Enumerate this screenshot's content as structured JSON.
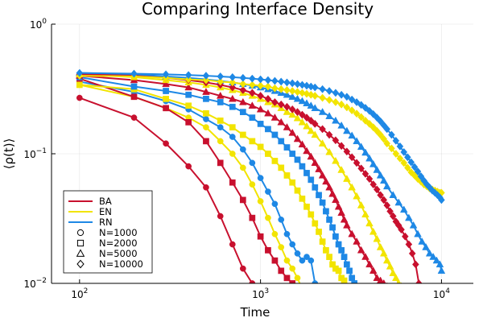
{
  "chart_data": {
    "type": "line",
    "title": "Comparing Interface Density",
    "xlabel": "Time",
    "ylabel": "⟨ρ(t)⟩",
    "xscale": "log",
    "yscale": "log",
    "xlim": [
      70,
      15000
    ],
    "ylim": [
      0.01,
      1
    ],
    "x_ticks": [
      {
        "value": 100,
        "base": "10",
        "exp": "2"
      },
      {
        "value": 1000,
        "base": "10",
        "exp": "3"
      },
      {
        "value": 10000,
        "base": "10",
        "exp": "4"
      }
    ],
    "y_ticks": [
      {
        "value": 0.01,
        "base": "10",
        "exp": "−2"
      },
      {
        "value": 0.1,
        "base": "10",
        "exp": "−1"
      },
      {
        "value": 1,
        "base": "10",
        "exp": "0"
      }
    ],
    "grid": true,
    "legend_position": "bottom-left",
    "legend_colors": [
      {
        "name": "BA",
        "color": "#c8102e"
      },
      {
        "name": "EN",
        "color": "#f2e400"
      },
      {
        "name": "RN",
        "color": "#1e88e5"
      }
    ],
    "legend_markers": [
      {
        "name": "N=1000",
        "marker": "circle"
      },
      {
        "name": "N=2000",
        "marker": "square"
      },
      {
        "name": "N=5000",
        "marker": "triangle"
      },
      {
        "name": "N=10000",
        "marker": "diamond"
      }
    ],
    "series": [
      {
        "network": "BA",
        "size": "N=1000",
        "color": "#c8102e",
        "marker": "circle",
        "x": [
          100,
          200,
          300,
          400,
          500,
          600,
          700,
          800,
          900,
          1000
        ],
        "y": [
          0.27,
          0.19,
          0.12,
          0.08,
          0.055,
          0.033,
          0.02,
          0.013,
          0.01,
          0.0085
        ]
      },
      {
        "network": "EN",
        "size": "N=1000",
        "color": "#f2e400",
        "marker": "circle",
        "x": [
          100,
          200,
          300,
          400,
          500,
          600,
          700,
          800,
          900,
          1000,
          1100,
          1200,
          1300,
          1400,
          1500,
          1600,
          1700
        ],
        "y": [
          0.34,
          0.275,
          0.225,
          0.19,
          0.16,
          0.125,
          0.1,
          0.078,
          0.058,
          0.043,
          0.032,
          0.024,
          0.019,
          0.015,
          0.013,
          0.011,
          0.009
        ]
      },
      {
        "network": "RN",
        "size": "N=1000",
        "color": "#1e88e5",
        "marker": "circle",
        "x": [
          100,
          200,
          300,
          400,
          500,
          600,
          700,
          800,
          900,
          1000,
          1100,
          1200,
          1300,
          1400,
          1500,
          1600,
          1700,
          1800,
          1900,
          2000
        ],
        "y": [
          0.36,
          0.3,
          0.255,
          0.22,
          0.185,
          0.16,
          0.135,
          0.108,
          0.085,
          0.065,
          0.051,
          0.041,
          0.031,
          0.024,
          0.02,
          0.017,
          0.015,
          0.016,
          0.015,
          0.01
        ]
      },
      {
        "network": "BA",
        "size": "N=2000",
        "color": "#c8102e",
        "marker": "square",
        "x": [
          100,
          200,
          300,
          400,
          500,
          600,
          700,
          800,
          900,
          1000,
          1100,
          1200,
          1300,
          1400,
          1500,
          1550
        ],
        "y": [
          0.38,
          0.275,
          0.225,
          0.175,
          0.125,
          0.085,
          0.06,
          0.044,
          0.032,
          0.023,
          0.018,
          0.015,
          0.0125,
          0.011,
          0.01,
          0.0095
        ]
      },
      {
        "network": "EN",
        "size": "N=2000",
        "color": "#f2e400",
        "marker": "square",
        "x": [
          100,
          200,
          300,
          400,
          500,
          600,
          700,
          800,
          900,
          1000,
          1100,
          1200,
          1300,
          1400,
          1500,
          1600,
          1700,
          1800,
          1900,
          2000,
          2100,
          2200,
          2300,
          2400,
          2500,
          2600,
          2700,
          2800,
          2900,
          3000,
          3100
        ],
        "y": [
          0.34,
          0.315,
          0.265,
          0.235,
          0.205,
          0.18,
          0.16,
          0.14,
          0.125,
          0.113,
          0.1,
          0.088,
          0.078,
          0.068,
          0.06,
          0.052,
          0.045,
          0.039,
          0.034,
          0.029,
          0.025,
          0.021,
          0.018,
          0.016,
          0.014,
          0.013,
          0.0125,
          0.011,
          0.0105,
          0.0095,
          0.009
        ]
      },
      {
        "network": "RN",
        "size": "N=2000",
        "color": "#1e88e5",
        "marker": "square",
        "x": [
          100,
          200,
          300,
          400,
          500,
          600,
          700,
          800,
          900,
          1000,
          1100,
          1200,
          1300,
          1400,
          1500,
          1600,
          1700,
          1800,
          1900,
          2000,
          2100,
          2200,
          2300,
          2400,
          2500,
          2600,
          2700,
          2800,
          2900,
          3000,
          3100,
          3200,
          3300
        ],
        "y": [
          0.39,
          0.33,
          0.305,
          0.285,
          0.265,
          0.25,
          0.23,
          0.21,
          0.19,
          0.17,
          0.155,
          0.14,
          0.125,
          0.112,
          0.1,
          0.09,
          0.08,
          0.071,
          0.063,
          0.055,
          0.048,
          0.042,
          0.036,
          0.031,
          0.027,
          0.023,
          0.02,
          0.018,
          0.016,
          0.014,
          0.0125,
          0.011,
          0.01
        ]
      },
      {
        "network": "BA",
        "size": "N=5000",
        "color": "#c8102e",
        "marker": "triangle",
        "x": [
          100,
          200,
          300,
          400,
          500,
          600,
          700,
          800,
          900,
          1000,
          1100,
          1200,
          1300,
          1400,
          1500,
          1600,
          1700,
          1800,
          1900,
          2000,
          2100,
          2200,
          2300,
          2400,
          2500,
          2600,
          2700,
          2800,
          2900,
          3000,
          3200,
          3400,
          3600,
          3800,
          4000,
          4200,
          4400,
          4600,
          4800,
          5000,
          5200
        ],
        "y": [
          0.4,
          0.37,
          0.345,
          0.325,
          0.3,
          0.28,
          0.265,
          0.25,
          0.235,
          0.22,
          0.205,
          0.19,
          0.175,
          0.16,
          0.145,
          0.13,
          0.118,
          0.105,
          0.095,
          0.085,
          0.076,
          0.068,
          0.061,
          0.055,
          0.049,
          0.044,
          0.039,
          0.035,
          0.031,
          0.028,
          0.024,
          0.021,
          0.018,
          0.016,
          0.014,
          0.0125,
          0.011,
          0.0105,
          0.01,
          0.0095,
          0.009
        ]
      },
      {
        "network": "EN",
        "size": "N=5000",
        "color": "#f2e400",
        "marker": "triangle",
        "x": [
          100,
          200,
          300,
          400,
          500,
          600,
          700,
          800,
          900,
          1000,
          1100,
          1200,
          1300,
          1400,
          1500,
          1600,
          1700,
          1800,
          1900,
          2000,
          2200,
          2400,
          2600,
          2800,
          3000,
          3200,
          3400,
          3600,
          3800,
          4000,
          4200,
          4400,
          4600,
          4800,
          5000,
          5200,
          5400,
          5600,
          5800,
          6000
        ],
        "y": [
          0.41,
          0.39,
          0.37,
          0.355,
          0.34,
          0.325,
          0.31,
          0.295,
          0.28,
          0.265,
          0.25,
          0.24,
          0.225,
          0.21,
          0.2,
          0.188,
          0.175,
          0.163,
          0.15,
          0.14,
          0.12,
          0.103,
          0.088,
          0.075,
          0.064,
          0.055,
          0.047,
          0.04,
          0.034,
          0.029,
          0.025,
          0.022,
          0.019,
          0.017,
          0.015,
          0.0135,
          0.012,
          0.011,
          0.01,
          0.0095
        ]
      },
      {
        "network": "RN",
        "size": "N=5000",
        "color": "#1e88e5",
        "marker": "triangle",
        "x": [
          100,
          200,
          300,
          400,
          500,
          600,
          700,
          800,
          900,
          1000,
          1100,
          1200,
          1300,
          1400,
          1500,
          1600,
          1700,
          1800,
          1900,
          2000,
          2200,
          2400,
          2600,
          2800,
          3000,
          3200,
          3400,
          3600,
          3800,
          4000,
          4200,
          4400,
          4600,
          4800,
          5000,
          5400,
          5800,
          6200,
          6600,
          7000,
          7400,
          7800,
          8200,
          8600,
          9000,
          9400,
          9800,
          10000
        ],
        "y": [
          0.42,
          0.41,
          0.395,
          0.385,
          0.375,
          0.365,
          0.355,
          0.345,
          0.335,
          0.325,
          0.315,
          0.305,
          0.295,
          0.285,
          0.275,
          0.265,
          0.255,
          0.245,
          0.235,
          0.225,
          0.21,
          0.195,
          0.18,
          0.165,
          0.15,
          0.138,
          0.125,
          0.113,
          0.102,
          0.092,
          0.083,
          0.075,
          0.068,
          0.062,
          0.056,
          0.048,
          0.042,
          0.037,
          0.032,
          0.028,
          0.024,
          0.021,
          0.019,
          0.017,
          0.016,
          0.015,
          0.014,
          0.0125
        ]
      },
      {
        "network": "BA",
        "size": "N=10000",
        "color": "#c8102e",
        "marker": "diamond",
        "x": [
          100,
          200,
          300,
          400,
          500,
          600,
          700,
          800,
          900,
          1000,
          1100,
          1200,
          1300,
          1400,
          1500,
          1600,
          1700,
          1800,
          1900,
          2000,
          2200,
          2400,
          2600,
          2800,
          3000,
          3200,
          3400,
          3600,
          3800,
          4000,
          4200,
          4400,
          4600,
          4800,
          5000,
          5200,
          5400,
          5600,
          5800,
          6000,
          6300,
          6600,
          6900,
          7200,
          7500
        ],
        "y": [
          0.41,
          0.4,
          0.385,
          0.37,
          0.355,
          0.34,
          0.325,
          0.31,
          0.295,
          0.28,
          0.265,
          0.25,
          0.24,
          0.23,
          0.22,
          0.21,
          0.2,
          0.19,
          0.18,
          0.17,
          0.155,
          0.14,
          0.127,
          0.115,
          0.104,
          0.094,
          0.085,
          0.077,
          0.07,
          0.064,
          0.058,
          0.053,
          0.048,
          0.044,
          0.04,
          0.036,
          0.033,
          0.03,
          0.028,
          0.026,
          0.023,
          0.02,
          0.017,
          0.014,
          0.01
        ]
      },
      {
        "network": "EN",
        "size": "N=10000",
        "color": "#f2e400",
        "marker": "diamond",
        "x": [
          100,
          200,
          300,
          400,
          500,
          600,
          700,
          800,
          900,
          1000,
          1100,
          1200,
          1300,
          1400,
          1500,
          1600,
          1700,
          1800,
          1900,
          2000,
          2200,
          2400,
          2600,
          2800,
          3000,
          3200,
          3400,
          3600,
          3800,
          4000,
          4200,
          4400,
          4600,
          4800,
          5000,
          5300,
          5600,
          5900,
          6200,
          6500,
          6800,
          7100,
          7400,
          7700,
          8000,
          8300,
          8600,
          8900,
          9200,
          9500,
          9800,
          10000
        ],
        "y": [
          0.4,
          0.395,
          0.385,
          0.375,
          0.37,
          0.36,
          0.355,
          0.345,
          0.34,
          0.335,
          0.33,
          0.32,
          0.315,
          0.31,
          0.305,
          0.3,
          0.295,
          0.29,
          0.285,
          0.28,
          0.27,
          0.26,
          0.25,
          0.24,
          0.228,
          0.216,
          0.204,
          0.192,
          0.18,
          0.17,
          0.16,
          0.15,
          0.14,
          0.13,
          0.12,
          0.11,
          0.1,
          0.092,
          0.085,
          0.078,
          0.072,
          0.068,
          0.064,
          0.061,
          0.058,
          0.056,
          0.054,
          0.053,
          0.052,
          0.051,
          0.05,
          0.05
        ]
      },
      {
        "network": "RN",
        "size": "N=10000",
        "color": "#1e88e5",
        "marker": "diamond",
        "x": [
          100,
          200,
          300,
          400,
          500,
          600,
          700,
          800,
          900,
          1000,
          1100,
          1200,
          1300,
          1400,
          1500,
          1600,
          1700,
          1800,
          1900,
          2000,
          2200,
          2400,
          2600,
          2800,
          3000,
          3200,
          3400,
          3600,
          3800,
          4000,
          4200,
          4400,
          4600,
          4800,
          5000,
          5300,
          5600,
          5900,
          6200,
          6500,
          6800,
          7100,
          7400,
          7700,
          8000,
          8300,
          8600,
          8900,
          9200,
          9500,
          9800,
          10000
        ],
        "y": [
          0.42,
          0.415,
          0.41,
          0.405,
          0.4,
          0.395,
          0.39,
          0.385,
          0.38,
          0.375,
          0.37,
          0.365,
          0.36,
          0.355,
          0.35,
          0.345,
          0.34,
          0.335,
          0.33,
          0.325,
          0.315,
          0.305,
          0.295,
          0.285,
          0.275,
          0.262,
          0.25,
          0.238,
          0.226,
          0.214,
          0.202,
          0.19,
          0.178,
          0.166,
          0.155,
          0.14,
          0.126,
          0.114,
          0.103,
          0.094,
          0.086,
          0.079,
          0.073,
          0.067,
          0.062,
          0.058,
          0.055,
          0.052,
          0.05,
          0.048,
          0.046,
          0.044
        ]
      }
    ]
  }
}
